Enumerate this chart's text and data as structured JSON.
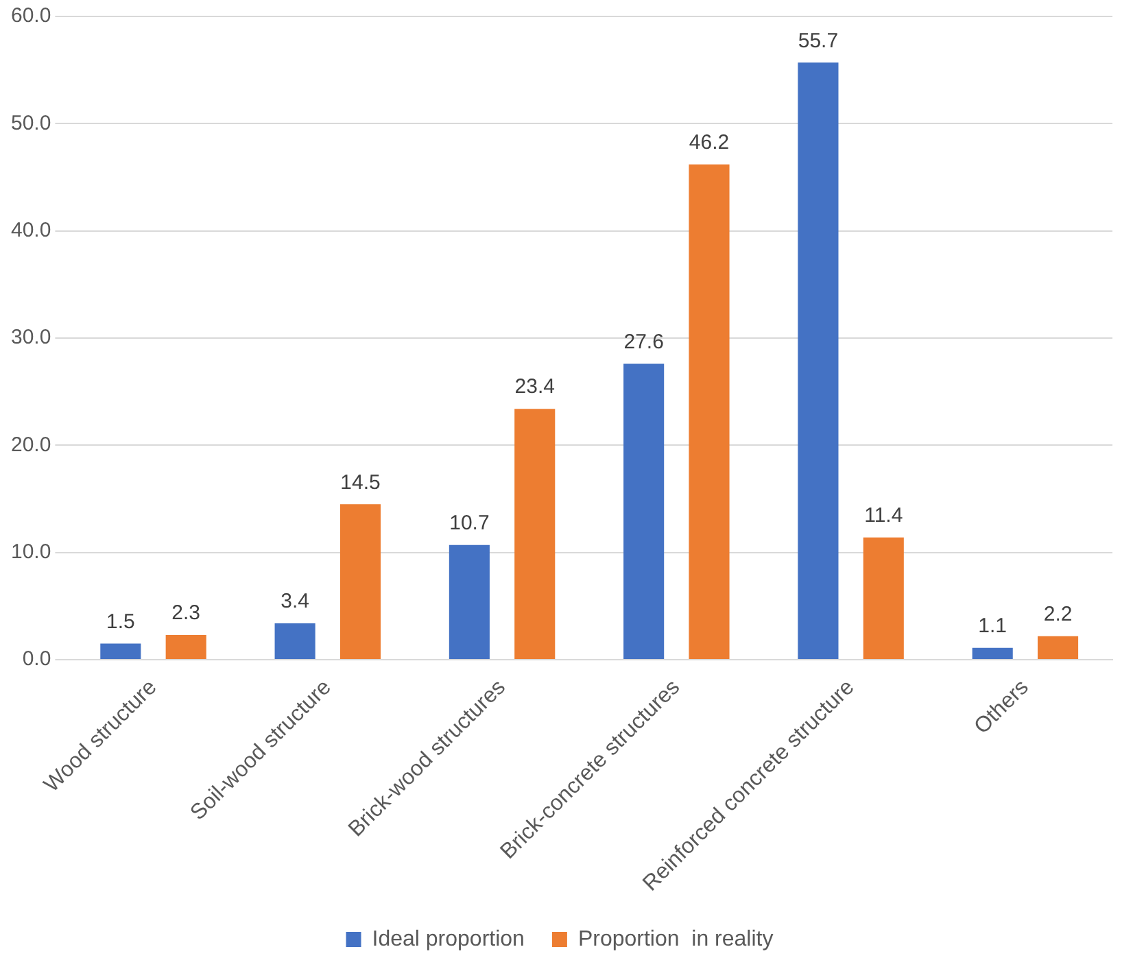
{
  "chart_data": {
    "type": "bar",
    "categories": [
      "Wood structure",
      "Soil-wood structure",
      "Brick-wood structures",
      "Brick-concrete structures",
      "Reinforced concrete structure",
      "Others"
    ],
    "series": [
      {
        "name": "Ideal proportion",
        "color": "#4472c4",
        "values": [
          1.5,
          3.4,
          10.7,
          27.6,
          55.7,
          1.1
        ]
      },
      {
        "name": "Proportion  in reality",
        "color": "#ed7d31",
        "values": [
          2.3,
          14.5,
          23.4,
          46.2,
          11.4,
          2.2
        ]
      }
    ],
    "ylim": [
      0,
      60
    ],
    "yticks": [
      {
        "value": 0,
        "label": "0.0"
      },
      {
        "value": 10,
        "label": "10.0"
      },
      {
        "value": 20,
        "label": "20.0"
      },
      {
        "value": 30,
        "label": "30.0"
      },
      {
        "value": 40,
        "label": "40.0"
      },
      {
        "value": 50,
        "label": "50.0"
      },
      {
        "value": 60,
        "label": "60.0"
      }
    ],
    "grid": "y",
    "legend": "bottom",
    "data_labels": true
  }
}
